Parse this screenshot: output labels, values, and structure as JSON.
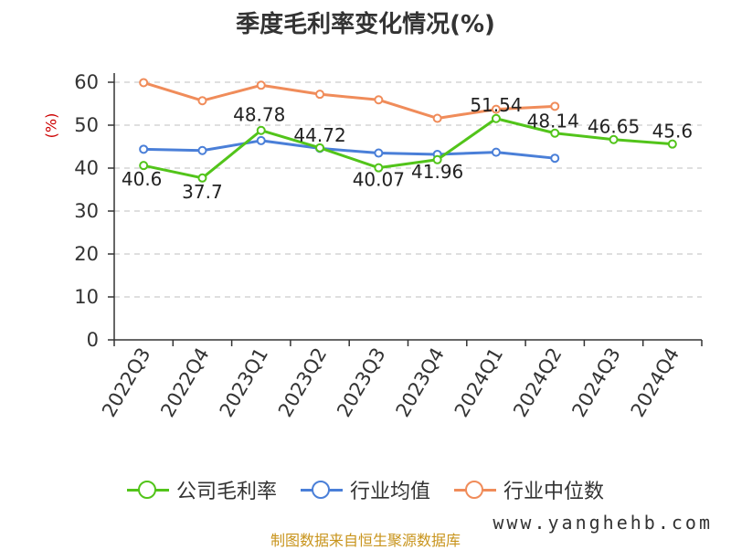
{
  "chart_data": {
    "type": "line",
    "title": "季度毛利率变化情况(%)",
    "ylabel": "(%)",
    "ylim": [
      0,
      60
    ],
    "yticks": [
      0,
      10,
      20,
      30,
      40,
      50,
      60
    ],
    "grid": true,
    "legend_position": "bottom",
    "categories": [
      "2022Q3",
      "2022Q4",
      "2023Q1",
      "2023Q2",
      "2023Q3",
      "2023Q4",
      "2024Q1",
      "2024Q2",
      "2024Q3",
      "2024Q4"
    ],
    "series": [
      {
        "name": "公司毛利率",
        "color": "#52c41a",
        "values": [
          40.6,
          37.7,
          48.78,
          44.72,
          40.07,
          41.96,
          51.54,
          48.14,
          46.65,
          45.6
        ],
        "labels": [
          "40.6",
          "37.7",
          "48.78",
          "44.72",
          "40.07",
          "41.96",
          "51.54",
          "48.14",
          "46.65",
          "45.6"
        ]
      },
      {
        "name": "行业均值",
        "color": "#4a7fd8",
        "values": [
          44.4,
          44.1,
          46.4,
          44.6,
          43.5,
          43.2,
          43.7,
          42.3,
          null,
          null
        ]
      },
      {
        "name": "行业中位数",
        "color": "#f08c5a",
        "values": [
          59.9,
          55.7,
          59.3,
          57.2,
          55.9,
          51.6,
          53.7,
          54.4,
          null,
          null
        ]
      }
    ]
  },
  "source_text": "制图数据来自恒生聚源数据库",
  "watermark_text": "www.yanghehb.com"
}
